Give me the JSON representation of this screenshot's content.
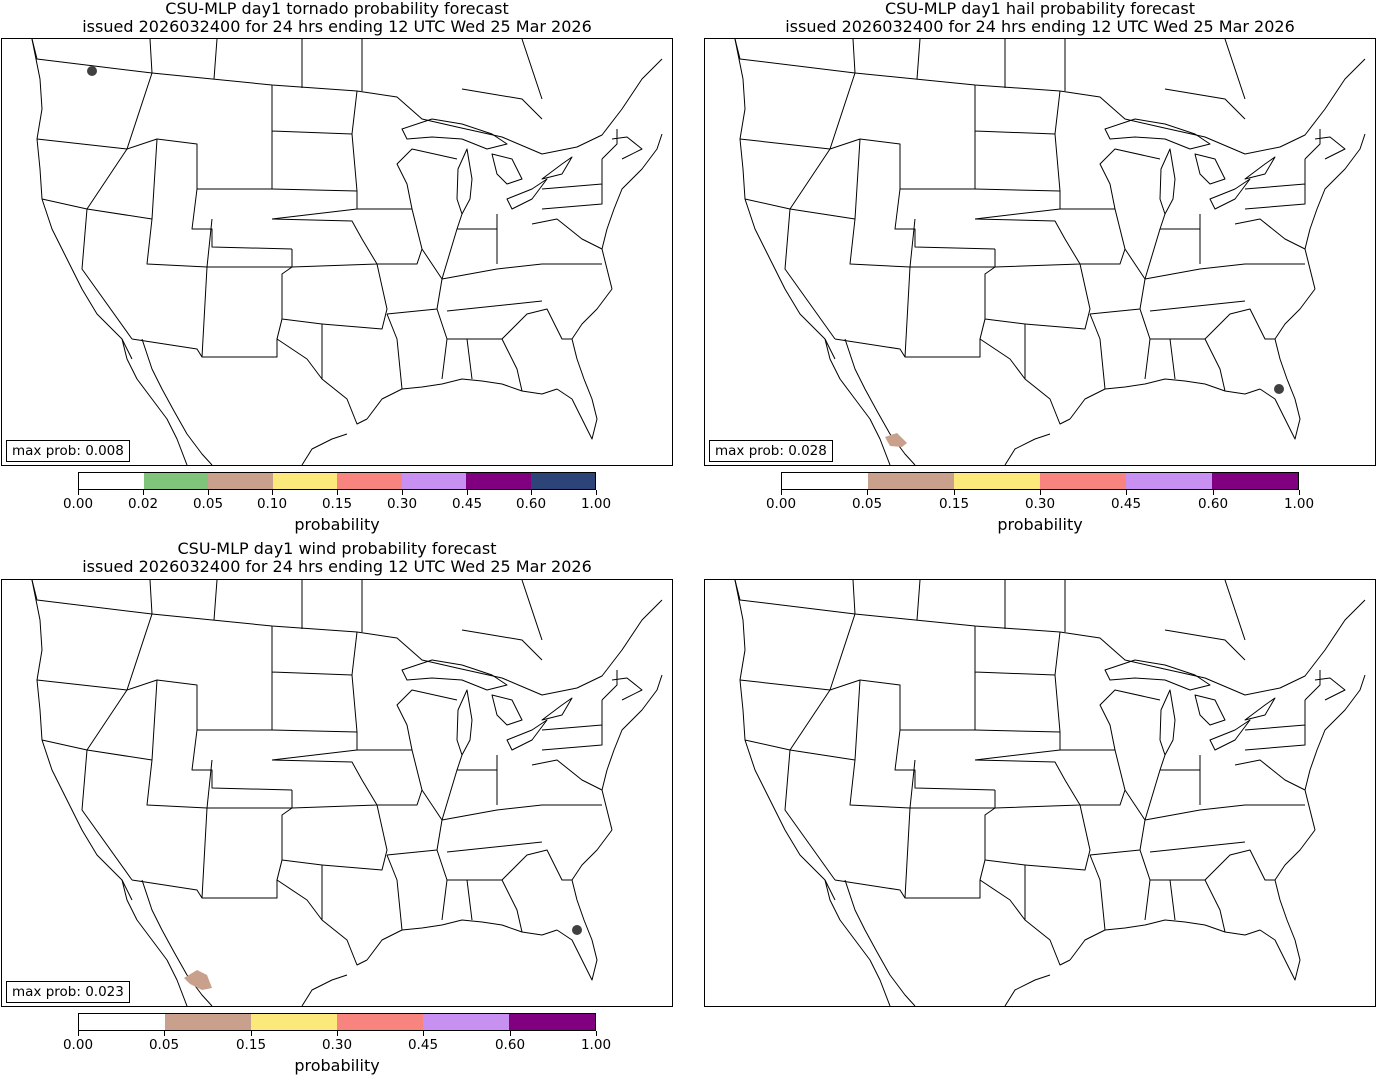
{
  "panels": {
    "tornado": {
      "title_line1": "CSU-MLP day1 tornado probability forecast",
      "title_line2": "issued 2026032400 for 24 hrs ending 12 UTC Wed 25 Mar 2026",
      "max_prob": "max prob: 0.008",
      "colorbar": {
        "ticks": [
          "0.00",
          "0.02",
          "0.05",
          "0.10",
          "0.15",
          "0.30",
          "0.45",
          "0.60",
          "1.00"
        ],
        "colors": [
          "#ffffff",
          "#80c47c",
          "#c8a08c",
          "#fce97c",
          "#f88480",
          "#c890f0",
          "#800080",
          "#2c4478"
        ],
        "label": "probability"
      }
    },
    "hail": {
      "title_line1": "CSU-MLP day1 hail probability forecast",
      "title_line2": "issued 2026032400 for 24 hrs ending 12 UTC Wed 25 Mar 2026",
      "max_prob": "max prob: 0.028",
      "colorbar": {
        "ticks": [
          "0.00",
          "0.05",
          "0.15",
          "0.30",
          "0.45",
          "0.60",
          "1.00"
        ],
        "colors": [
          "#ffffff",
          "#c8a08c",
          "#fce97c",
          "#f88480",
          "#c890f0",
          "#800080"
        ],
        "label": "probability"
      }
    },
    "wind": {
      "title_line1": "CSU-MLP day1 wind probability forecast",
      "title_line2": "issued 2026032400 for 24 hrs ending 12 UTC Wed 25 Mar 2026",
      "max_prob": "max prob: 0.023",
      "colorbar": {
        "ticks": [
          "0.00",
          "0.05",
          "0.15",
          "0.30",
          "0.45",
          "0.60",
          "1.00"
        ],
        "colors": [
          "#ffffff",
          "#c8a08c",
          "#fce97c",
          "#f88480",
          "#c890f0",
          "#800080"
        ],
        "label": "probability"
      }
    },
    "blank": {}
  },
  "colors": {
    "report_dot": "#404040",
    "shading_0_05": "#c8a08c"
  }
}
